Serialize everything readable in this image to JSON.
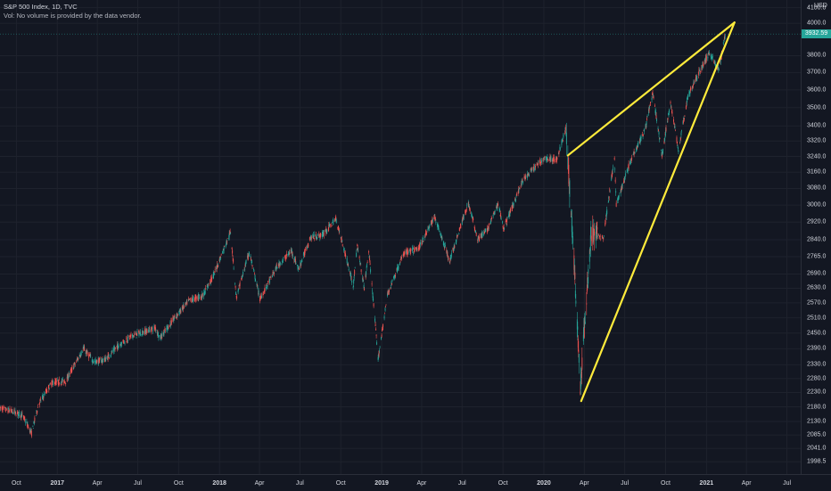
{
  "legend": {
    "symbol_line": "S&P 500 Index, 1D, TVC",
    "volume_note": "Vol: No volume is provided by the data vendor."
  },
  "price_axis": {
    "currency": "USD",
    "last_price_label": "3932.59"
  },
  "colors": {
    "background": "#131722",
    "up_candle": "#26a69a",
    "down_candle": "#ef5350",
    "pattern_lines": "#ffeb3b",
    "grid": "#1e222d"
  },
  "chart_data": {
    "type": "candlestick",
    "title": "S&P 500 Index, 1D, TVC",
    "y_scale": "log",
    "ylim": [
      1960,
      4150
    ],
    "xlim": [
      "2016-08-25",
      "2021-08-01"
    ],
    "y_ticks": [
      4100.0,
      4000.0,
      3800.0,
      3700.0,
      3600.0,
      3500.0,
      3400.0,
      3320.0,
      3240.0,
      3160.0,
      3080.0,
      3000.0,
      2920.0,
      2840.0,
      2765.0,
      2690.0,
      2630.0,
      2570.0,
      2510.0,
      2450.0,
      2390.0,
      2330.0,
      2280.0,
      2230.0,
      2180.0,
      2130.0,
      2085.0,
      2041.0,
      1998.5
    ],
    "x_ticks": [
      {
        "label": "Oct",
        "date": "2016-10-01"
      },
      {
        "label": "2017",
        "date": "2017-01-01",
        "year": true
      },
      {
        "label": "Apr",
        "date": "2017-04-01"
      },
      {
        "label": "Jul",
        "date": "2017-07-01"
      },
      {
        "label": "Oct",
        "date": "2017-10-01"
      },
      {
        "label": "2018",
        "date": "2018-01-01",
        "year": true
      },
      {
        "label": "Apr",
        "date": "2018-04-01"
      },
      {
        "label": "Jul",
        "date": "2018-07-01"
      },
      {
        "label": "Oct",
        "date": "2018-10-01"
      },
      {
        "label": "2019",
        "date": "2019-01-01",
        "year": true
      },
      {
        "label": "Apr",
        "date": "2019-04-01"
      },
      {
        "label": "Jul",
        "date": "2019-07-01"
      },
      {
        "label": "Oct",
        "date": "2019-10-01"
      },
      {
        "label": "2020",
        "date": "2020-01-01",
        "year": true
      },
      {
        "label": "Apr",
        "date": "2020-04-01"
      },
      {
        "label": "Jul",
        "date": "2020-07-01"
      },
      {
        "label": "Oct",
        "date": "2020-10-01"
      },
      {
        "label": "2021",
        "date": "2021-01-01",
        "year": true
      },
      {
        "label": "Apr",
        "date": "2021-04-01"
      },
      {
        "label": "Jul",
        "date": "2021-07-01"
      }
    ],
    "price_path": [
      [
        "2016-08-25",
        2175
      ],
      [
        "2016-09-20",
        2165
      ],
      [
        "2016-10-15",
        2150
      ],
      [
        "2016-11-04",
        2090
      ],
      [
        "2016-11-20",
        2190
      ],
      [
        "2016-12-20",
        2265
      ],
      [
        "2017-01-20",
        2270
      ],
      [
        "2017-03-01",
        2390
      ],
      [
        "2017-03-25",
        2340
      ],
      [
        "2017-04-20",
        2350
      ],
      [
        "2017-05-20",
        2405
      ],
      [
        "2017-06-20",
        2440
      ],
      [
        "2017-08-10",
        2470
      ],
      [
        "2017-08-20",
        2430
      ],
      [
        "2017-09-20",
        2505
      ],
      [
        "2017-10-25",
        2580
      ],
      [
        "2017-11-25",
        2600
      ],
      [
        "2017-12-20",
        2690
      ],
      [
        "2018-01-26",
        2875
      ],
      [
        "2018-02-08",
        2590
      ],
      [
        "2018-03-09",
        2785
      ],
      [
        "2018-04-02",
        2585
      ],
      [
        "2018-05-10",
        2720
      ],
      [
        "2018-06-12",
        2790
      ],
      [
        "2018-06-28",
        2710
      ],
      [
        "2018-07-25",
        2850
      ],
      [
        "2018-08-20",
        2860
      ],
      [
        "2018-09-20",
        2935
      ],
      [
        "2018-10-12",
        2770
      ],
      [
        "2018-10-29",
        2640
      ],
      [
        "2018-11-07",
        2810
      ],
      [
        "2018-11-23",
        2630
      ],
      [
        "2018-12-03",
        2790
      ],
      [
        "2018-12-24",
        2350
      ],
      [
        "2019-01-15",
        2610
      ],
      [
        "2019-02-20",
        2780
      ],
      [
        "2019-03-25",
        2800
      ],
      [
        "2019-04-30",
        2945
      ],
      [
        "2019-06-03",
        2745
      ],
      [
        "2019-07-15",
        3010
      ],
      [
        "2019-08-05",
        2845
      ],
      [
        "2019-08-26",
        2880
      ],
      [
        "2019-09-20",
        3005
      ],
      [
        "2019-10-03",
        2890
      ],
      [
        "2019-11-15",
        3120
      ],
      [
        "2019-12-31",
        3230
      ],
      [
        "2020-01-31",
        3225
      ],
      [
        "2020-02-19",
        3385
      ],
      [
        "2020-03-09",
        2745
      ],
      [
        "2020-03-23",
        2237
      ],
      [
        "2020-04-17",
        2870
      ],
      [
        "2020-05-14",
        2850
      ],
      [
        "2020-06-08",
        3230
      ],
      [
        "2020-06-12",
        3000
      ],
      [
        "2020-07-15",
        3225
      ],
      [
        "2020-08-15",
        3375
      ],
      [
        "2020-09-02",
        3580
      ],
      [
        "2020-09-23",
        3240
      ],
      [
        "2020-10-12",
        3530
      ],
      [
        "2020-10-30",
        3270
      ],
      [
        "2020-11-20",
        3560
      ],
      [
        "2020-12-15",
        3700
      ],
      [
        "2021-01-08",
        3820
      ],
      [
        "2021-01-29",
        3710
      ],
      [
        "2021-02-12",
        3935
      ]
    ],
    "annotations": {
      "rising_wedge": {
        "upper_line": [
          [
            "2020-02-24",
            3245
          ],
          [
            "2021-03-05",
            4005
          ]
        ],
        "lower_line": [
          [
            "2020-03-25",
            2200
          ],
          [
            "2021-03-05",
            4005
          ]
        ]
      },
      "last_price": 3932.59
    }
  }
}
